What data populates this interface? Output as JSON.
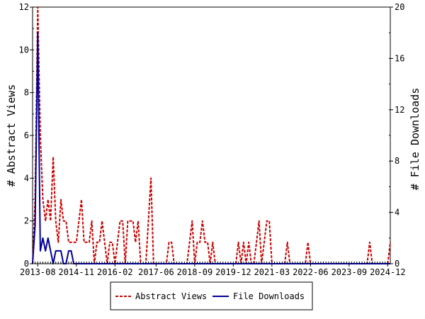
{
  "chart_data": {
    "type": "line",
    "ylabel": "# Abstract Views",
    "y2label": "# File Downloads",
    "ylim": [
      0,
      12
    ],
    "y2lim": [
      0,
      20
    ],
    "yticks": [
      "0",
      "2",
      "4",
      "6",
      "8",
      "10",
      "12"
    ],
    "y2ticks": [
      "0",
      "4",
      "8",
      "12",
      "16",
      "20"
    ],
    "xticks": [
      "2013-08",
      "2014-11",
      "2016-02",
      "2017-06",
      "2018-09",
      "2019-12",
      "2021-03",
      "2022-06",
      "2023-09",
      "2024-12"
    ],
    "start_month": "2013-06",
    "months_count": 140,
    "legend_position": "bottom",
    "grid": false,
    "series": [
      {
        "name": "Abstract Views",
        "color": "#cc0000",
        "style": "dashed",
        "values": [
          0,
          3,
          12,
          6,
          3,
          2,
          3,
          2,
          5,
          2,
          1,
          3,
          2,
          2,
          1,
          1,
          1,
          1,
          2,
          3,
          1,
          1,
          1,
          2,
          0,
          1,
          1,
          2,
          1,
          0,
          1,
          1,
          0,
          1,
          2,
          2,
          0,
          2,
          2,
          2,
          1,
          2,
          0,
          0,
          0,
          2,
          4,
          0,
          0,
          0,
          0,
          0,
          0,
          1,
          1,
          0,
          0,
          0,
          0,
          0,
          0,
          1,
          2,
          0,
          1,
          1,
          2,
          1,
          1,
          0,
          1,
          0,
          0,
          0,
          0,
          0,
          0,
          0,
          0,
          0,
          1,
          0,
          1,
          0,
          1,
          0,
          0,
          1,
          2,
          0,
          1,
          2,
          2,
          0,
          0,
          0,
          0,
          0,
          0,
          1,
          0,
          0,
          0,
          0,
          0,
          0,
          0,
          1,
          0,
          0,
          0,
          0,
          0,
          0,
          0,
          0,
          0,
          0,
          0,
          0,
          0,
          0,
          0,
          0,
          0,
          0,
          0,
          0,
          0,
          0,
          0,
          1,
          0,
          0,
          0,
          0,
          0,
          0,
          0,
          1
        ]
      },
      {
        "name": "File Downloads",
        "color": "#000099",
        "style": "solid",
        "values": [
          0,
          3,
          18,
          1,
          2,
          1,
          2,
          1,
          0,
          1,
          1,
          1,
          0,
          0,
          1,
          1,
          0,
          0,
          0,
          0,
          0,
          0,
          0,
          0,
          0,
          0,
          0,
          0,
          0,
          0,
          0,
          0,
          0,
          0,
          0,
          0,
          0,
          0,
          0,
          0,
          0,
          0,
          0,
          0,
          0,
          0,
          0,
          0,
          0,
          0,
          0,
          0,
          0,
          0,
          0,
          0,
          0,
          0,
          0,
          0,
          0,
          0,
          0,
          0,
          0,
          0,
          0,
          0,
          0,
          0,
          0,
          0,
          0,
          0,
          0,
          0,
          0,
          0,
          0,
          0,
          0,
          0,
          0,
          0,
          0,
          0,
          0,
          0,
          0,
          0,
          0,
          0,
          0,
          0,
          0,
          0,
          0,
          0,
          0,
          0,
          0,
          0,
          0,
          0,
          0,
          0,
          0,
          0,
          0,
          0,
          0,
          0,
          0,
          0,
          0,
          0,
          0,
          0,
          0,
          0,
          0,
          0,
          0,
          0,
          0,
          0,
          0,
          0,
          0,
          0,
          0,
          0,
          0,
          0,
          0,
          0,
          0,
          0,
          0,
          0
        ]
      }
    ]
  }
}
